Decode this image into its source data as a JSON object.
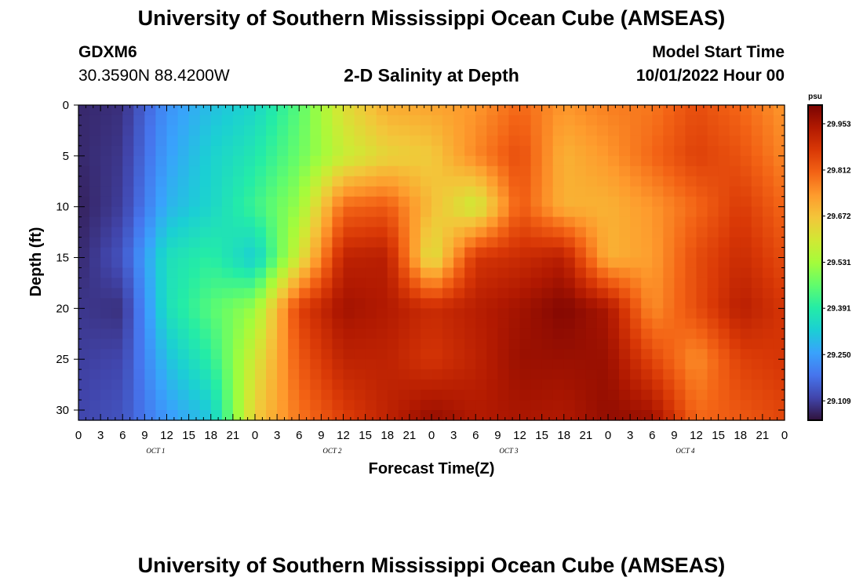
{
  "page": {
    "title": "University of Southern Mississippi Ocean Cube (AMSEAS)",
    "title_repeat": "University of Southern Mississippi Ocean Cube (AMSEAS)",
    "station": "GDXM6",
    "coordinates": "30.3590N  88.4200W",
    "subtitle": "2-D Salinity at Depth",
    "model_start_label": "Model Start Time",
    "model_start_value": "10/01/2022 Hour 00"
  },
  "colors": {
    "background": "#ffffff",
    "frame": "#000000",
    "colormap": [
      "#30123b",
      "#4145ab",
      "#4675ed",
      "#39a2fc",
      "#1bcfd4",
      "#24eca6",
      "#61fc6c",
      "#a4fc3b",
      "#d1e834",
      "#f3c63a",
      "#fe9b2d",
      "#f36315",
      "#d93806",
      "#b11901",
      "#7a0402"
    ]
  },
  "chart_data": {
    "type": "heatmap",
    "title": "2-D Salinity at Depth",
    "xlabel": "Forecast Time(Z)",
    "ylabel": "Depth (ft)",
    "x_tick_labels": [
      "0",
      "3",
      "6",
      "9",
      "12",
      "15",
      "18",
      "21",
      "0",
      "3",
      "6",
      "9",
      "12",
      "15",
      "18",
      "21",
      "0",
      "3",
      "6",
      "9",
      "12",
      "15",
      "18",
      "21",
      "0",
      "3",
      "6",
      "9",
      "12",
      "15",
      "18",
      "21",
      "0"
    ],
    "x_range_hours": [
      0,
      96
    ],
    "day_labels": [
      "OCT  1",
      "OCT  2",
      "OCT  3",
      "OCT  4"
    ],
    "y_ticks": [
      0,
      5,
      10,
      15,
      20,
      25,
      30
    ],
    "y_tick_labels": [
      "0",
      "5",
      "10",
      "15",
      "20",
      "25",
      "30"
    ],
    "y_range": [
      0,
      31
    ],
    "colorbar": {
      "unit": "psu",
      "min": 29.05,
      "max": 30.01,
      "ticks": [
        29.953,
        29.812,
        29.672,
        29.531,
        29.391,
        29.25,
        29.109
      ],
      "tick_labels": [
        "29.953",
        "29.812",
        "29.672",
        "29.531",
        "29.391",
        "29.250",
        "29.109"
      ]
    },
    "grid_hours": [
      0,
      6,
      12,
      18,
      24,
      30,
      36,
      42,
      48,
      54,
      60,
      66,
      72,
      78,
      84,
      90,
      96
    ],
    "grid_depths": [
      0,
      5,
      10,
      15,
      20,
      25,
      31
    ],
    "values": [
      [
        29.08,
        29.09,
        29.23,
        29.3,
        29.34,
        29.45,
        29.62,
        29.71,
        29.72,
        29.74,
        29.8,
        29.74,
        29.77,
        29.78,
        29.84,
        29.8,
        29.74
      ],
      [
        29.08,
        29.1,
        29.25,
        29.33,
        29.38,
        29.47,
        29.58,
        29.64,
        29.66,
        29.76,
        29.84,
        29.7,
        29.74,
        29.8,
        29.86,
        29.83,
        29.76
      ],
      [
        29.07,
        29.11,
        29.28,
        29.34,
        29.42,
        29.52,
        29.8,
        29.82,
        29.68,
        29.58,
        29.82,
        29.7,
        29.7,
        29.74,
        29.8,
        29.87,
        29.8
      ],
      [
        29.08,
        29.14,
        29.36,
        29.4,
        29.32,
        29.6,
        29.92,
        29.93,
        29.6,
        29.88,
        29.9,
        29.93,
        29.7,
        29.73,
        29.84,
        29.9,
        29.84
      ],
      [
        29.1,
        29.09,
        29.36,
        29.45,
        29.52,
        29.86,
        29.96,
        29.94,
        29.9,
        29.93,
        29.96,
        30.0,
        29.95,
        29.75,
        29.84,
        29.93,
        29.88
      ],
      [
        29.11,
        29.12,
        29.3,
        29.4,
        29.6,
        29.82,
        29.92,
        29.92,
        29.88,
        29.92,
        29.97,
        29.97,
        29.97,
        29.85,
        29.75,
        29.86,
        29.88
      ],
      [
        29.12,
        29.14,
        29.24,
        29.31,
        29.66,
        29.78,
        29.86,
        29.92,
        29.98,
        29.94,
        29.95,
        29.94,
        29.98,
        29.97,
        29.8,
        29.82,
        29.85
      ]
    ]
  }
}
